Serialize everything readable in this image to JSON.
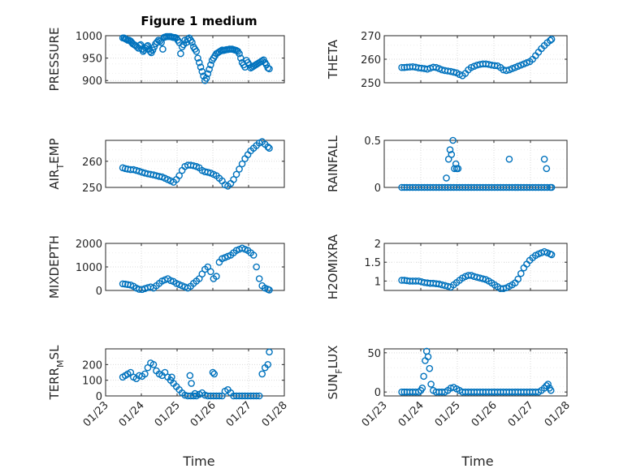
{
  "figure": {
    "title": "Figure 1 medium",
    "xlabel": "Time",
    "x_tick_labels": [
      "01/23",
      "01/24",
      "01/25",
      "01/26",
      "01/27",
      "01/28"
    ]
  },
  "colors": {
    "marker": "#0072BD",
    "grid": "#d9d9d9",
    "axes": "#262626"
  },
  "chart_data": [
    {
      "type": "scatter",
      "ylabel": "PRESSURE",
      "xlim": [
        0,
        5
      ],
      "ylim": [
        895,
        1000
      ],
      "yticks": [
        900,
        950,
        1000
      ],
      "ytick_labels": [
        "900",
        "950",
        "1000"
      ],
      "x": [
        0.48,
        0.52,
        0.55,
        0.58,
        0.62,
        0.66,
        0.7,
        0.73,
        0.76,
        0.8,
        0.84,
        0.88,
        0.92,
        0.95,
        0.98,
        1.02,
        1.05,
        1.08,
        1.12,
        1.15,
        1.18,
        1.22,
        1.25,
        1.28,
        1.32,
        1.36,
        1.4,
        1.44,
        1.48,
        1.52,
        1.56,
        1.6,
        1.63,
        1.66,
        1.7,
        1.74,
        1.78,
        1.82,
        1.86,
        1.9,
        1.94,
        1.98,
        2.02,
        2.06,
        2.1,
        2.14,
        2.18,
        2.22,
        2.26,
        2.3,
        2.34,
        2.38,
        2.42,
        2.46,
        2.5,
        2.54,
        2.58,
        2.62,
        2.66,
        2.7,
        2.74,
        2.78,
        2.82,
        2.86,
        2.9,
        2.94,
        2.98,
        3.02,
        3.06,
        3.1,
        3.14,
        3.18,
        3.22,
        3.26,
        3.3,
        3.34,
        3.38,
        3.42,
        3.46,
        3.5,
        3.54,
        3.58,
        3.62,
        3.66,
        3.7,
        3.74,
        3.78,
        3.82,
        3.86,
        3.9,
        3.94,
        3.98,
        4.02,
        4.06,
        4.1,
        4.14,
        4.18,
        4.22,
        4.26,
        4.3,
        4.34,
        4.38,
        4.42,
        4.46,
        4.5,
        4.54,
        4.58
      ],
      "y": [
        995,
        995,
        993,
        992,
        990,
        990,
        988,
        985,
        982,
        980,
        978,
        975,
        972,
        978,
        980,
        970,
        965,
        968,
        972,
        976,
        978,
        970,
        965,
        962,
        968,
        975,
        982,
        986,
        990,
        988,
        985,
        970,
        996,
        997,
        998,
        998,
        998,
        998,
        997,
        996,
        996,
        995,
        990,
        985,
        960,
        975,
        980,
        990,
        985,
        992,
        995,
        990,
        985,
        975,
        970,
        965,
        950,
        940,
        930,
        920,
        910,
        900,
        905,
        915,
        925,
        935,
        945,
        950,
        955,
        960,
        962,
        964,
        966,
        968,
        967,
        968,
        969,
        969,
        970,
        970,
        970,
        969,
        968,
        967,
        965,
        960,
        950,
        940,
        935,
        930,
        945,
        940,
        935,
        928,
        930,
        932,
        934,
        936,
        938,
        940,
        942,
        944,
        946,
        940,
        935,
        928,
        926
      ]
    },
    {
      "type": "scatter",
      "ylabel": "THETA",
      "xlim": [
        0,
        5
      ],
      "ylim": [
        250,
        270
      ],
      "yticks": [
        250,
        260,
        270
      ],
      "ytick_labels": [
        "250",
        "260",
        "270"
      ],
      "x": [
        0.48,
        0.55,
        0.62,
        0.7,
        0.78,
        0.86,
        0.94,
        1.02,
        1.1,
        1.18,
        1.26,
        1.34,
        1.42,
        1.5,
        1.58,
        1.66,
        1.74,
        1.82,
        1.9,
        1.98,
        2.06,
        2.14,
        2.22,
        2.3,
        2.38,
        2.46,
        2.54,
        2.62,
        2.7,
        2.78,
        2.86,
        2.94,
        3.02,
        3.1,
        3.18,
        3.26,
        3.34,
        3.42,
        3.5,
        3.58,
        3.66,
        3.74,
        3.82,
        3.9,
        3.98,
        4.06,
        4.14,
        4.22,
        4.3,
        4.38,
        4.46,
        4.54,
        4.58
      ],
      "y": [
        256.5,
        256.5,
        256.6,
        256.7,
        256.8,
        256.6,
        256.3,
        256.2,
        256,
        255.8,
        256.2,
        256.6,
        256.5,
        256,
        255.5,
        255.2,
        255,
        254.8,
        254.5,
        254.2,
        253.5,
        253,
        254,
        255.5,
        256.5,
        257,
        257.5,
        257.8,
        258,
        258,
        257.8,
        257.5,
        257.3,
        257.2,
        256.5,
        255.5,
        255.2,
        255.5,
        256,
        256.5,
        257,
        257.5,
        258,
        258.5,
        259,
        260,
        261.5,
        263,
        264.5,
        265.8,
        267,
        268,
        268.5
      ]
    },
    {
      "type": "scatter",
      "ylabel": "AIR_TEMP",
      "ylabel_main": "AIR",
      "ylabel_sub": "T",
      "ylabel_rest": "EMP",
      "xlim": [
        0,
        5
      ],
      "ylim": [
        250,
        268
      ],
      "yticks": [
        250,
        260
      ],
      "ytick_labels": [
        "250",
        "260"
      ],
      "x": [
        0.48,
        0.55,
        0.62,
        0.7,
        0.78,
        0.86,
        0.94,
        1.02,
        1.1,
        1.18,
        1.26,
        1.34,
        1.42,
        1.5,
        1.58,
        1.66,
        1.74,
        1.82,
        1.9,
        1.98,
        2.06,
        2.14,
        2.22,
        2.3,
        2.38,
        2.46,
        2.54,
        2.62,
        2.7,
        2.78,
        2.86,
        2.94,
        3.02,
        3.1,
        3.18,
        3.26,
        3.34,
        3.42,
        3.5,
        3.58,
        3.66,
        3.74,
        3.82,
        3.9,
        3.98,
        4.06,
        4.14,
        4.22,
        4.3,
        4.38,
        4.46,
        4.54,
        4.58
      ],
      "y": [
        257.5,
        257.2,
        257,
        256.8,
        256.8,
        256.5,
        256.2,
        255.8,
        255.5,
        255.2,
        255,
        254.8,
        254.5,
        254.2,
        254,
        253.5,
        253,
        252.5,
        252,
        253,
        254.5,
        256.5,
        258,
        258.5,
        258.5,
        258.3,
        258,
        257.5,
        256.5,
        256,
        255.8,
        255.5,
        255,
        254.5,
        253.5,
        252.5,
        251,
        250.5,
        251.5,
        253,
        255,
        257,
        259,
        261,
        262.5,
        264,
        265,
        266,
        267,
        267.5,
        266.5,
        265.5,
        265
      ]
    },
    {
      "type": "scatter",
      "ylabel": "RAINFALL",
      "xlim": [
        0,
        5
      ],
      "ylim": [
        0,
        0.5
      ],
      "yticks": [
        0,
        0.5
      ],
      "ytick_labels": [
        "0",
        "0.5"
      ],
      "x": [
        0.48,
        0.55,
        0.62,
        0.7,
        0.78,
        0.86,
        0.94,
        1.02,
        1.1,
        1.18,
        1.26,
        1.34,
        1.42,
        1.5,
        1.58,
        1.66,
        1.74,
        1.82,
        1.9,
        1.98,
        2.06,
        2.14,
        2.22,
        2.3,
        2.38,
        2.46,
        2.54,
        2.62,
        2.7,
        2.78,
        2.86,
        2.94,
        3.02,
        3.1,
        3.18,
        3.26,
        3.34,
        3.42,
        3.5,
        3.58,
        3.66,
        3.74,
        3.82,
        3.9,
        3.98,
        4.06,
        4.14,
        4.22,
        4.3,
        4.38,
        4.46,
        4.54,
        4.58,
        1.7,
        1.76,
        1.8,
        1.84,
        1.88,
        1.92,
        1.96,
        1.98,
        2.02,
        3.42,
        4.38,
        4.44
      ],
      "y": [
        0,
        0,
        0,
        0,
        0,
        0,
        0,
        0,
        0,
        0,
        0,
        0,
        0,
        0,
        0,
        0,
        0,
        0,
        0,
        0,
        0,
        0,
        0,
        0,
        0,
        0,
        0,
        0,
        0,
        0,
        0,
        0,
        0,
        0,
        0,
        0,
        0,
        0,
        0,
        0,
        0,
        0,
        0,
        0,
        0,
        0,
        0,
        0,
        0,
        0,
        0,
        0,
        0,
        0.1,
        0.3,
        0.4,
        0.35,
        0.5,
        0.2,
        0.25,
        0.2,
        0.2,
        0.3,
        0.3,
        0.2
      ]
    },
    {
      "type": "scatter",
      "ylabel": "MIXDEPTH",
      "xlim": [
        0,
        5
      ],
      "ylim": [
        0,
        2000
      ],
      "yticks": [
        0,
        1000,
        2000
      ],
      "ytick_labels": [
        "0",
        "1000",
        "2000"
      ],
      "x": [
        0.48,
        0.55,
        0.62,
        0.7,
        0.78,
        0.86,
        0.94,
        1.02,
        1.1,
        1.18,
        1.26,
        1.34,
        1.42,
        1.5,
        1.58,
        1.66,
        1.74,
        1.82,
        1.9,
        1.98,
        2.06,
        2.14,
        2.22,
        2.3,
        2.38,
        2.46,
        2.54,
        2.62,
        2.7,
        2.78,
        2.86,
        2.94,
        3.02,
        3.1,
        3.18,
        3.26,
        3.34,
        3.42,
        3.5,
        3.58,
        3.66,
        3.74,
        3.82,
        3.9,
        3.98,
        4.06,
        4.14,
        4.22,
        4.3,
        4.38,
        4.46,
        4.54,
        4.58
      ],
      "y": [
        280,
        270,
        250,
        230,
        180,
        100,
        50,
        40,
        80,
        120,
        150,
        100,
        200,
        300,
        400,
        450,
        500,
        420,
        380,
        300,
        250,
        200,
        150,
        100,
        180,
        300,
        400,
        500,
        700,
        900,
        1000,
        800,
        500,
        600,
        1200,
        1350,
        1400,
        1450,
        1500,
        1600,
        1700,
        1750,
        1800,
        1750,
        1700,
        1600,
        1500,
        1000,
        500,
        200,
        100,
        50,
        20
      ]
    },
    {
      "type": "scatter",
      "ylabel": "H2OMIXRA",
      "xlim": [
        0,
        5
      ],
      "ylim": [
        0.75,
        2
      ],
      "yticks": [
        1,
        1.5,
        2
      ],
      "ytick_labels": [
        "1",
        "1.5",
        "2"
      ],
      "x": [
        0.48,
        0.55,
        0.62,
        0.7,
        0.78,
        0.86,
        0.94,
        1.02,
        1.1,
        1.18,
        1.26,
        1.34,
        1.42,
        1.5,
        1.58,
        1.66,
        1.74,
        1.82,
        1.9,
        1.98,
        2.06,
        2.14,
        2.22,
        2.3,
        2.38,
        2.46,
        2.54,
        2.62,
        2.7,
        2.78,
        2.86,
        2.94,
        3.02,
        3.1,
        3.18,
        3.26,
        3.34,
        3.42,
        3.5,
        3.58,
        3.66,
        3.74,
        3.82,
        3.9,
        3.98,
        4.06,
        4.14,
        4.22,
        4.3,
        4.38,
        4.46,
        4.54,
        4.58
      ],
      "y": [
        1.02,
        1.02,
        1.01,
        1.0,
        1.0,
        1.0,
        1.0,
        0.98,
        0.96,
        0.95,
        0.94,
        0.94,
        0.93,
        0.92,
        0.9,
        0.88,
        0.86,
        0.84,
        0.9,
        0.96,
        1.02,
        1.08,
        1.12,
        1.15,
        1.15,
        1.12,
        1.1,
        1.08,
        1.06,
        1.04,
        1.0,
        0.95,
        0.9,
        0.85,
        0.8,
        0.8,
        0.82,
        0.86,
        0.9,
        0.95,
        1.05,
        1.2,
        1.35,
        1.45,
        1.55,
        1.62,
        1.68,
        1.72,
        1.75,
        1.78,
        1.75,
        1.72,
        1.7
      ]
    },
    {
      "type": "scatter",
      "ylabel": "TERR_MSL",
      "ylabel_main": "TERR",
      "ylabel_sub": "M",
      "ylabel_rest": "SL",
      "xlim": [
        0,
        5
      ],
      "ylim": [
        0,
        300
      ],
      "yticks": [
        0,
        100,
        200
      ],
      "ytick_labels": [
        "0",
        "100",
        "200"
      ],
      "x": [
        0.48,
        0.55,
        0.62,
        0.7,
        0.78,
        0.86,
        0.94,
        1.02,
        1.1,
        1.18,
        1.26,
        1.34,
        1.42,
        1.5,
        1.58,
        1.66,
        1.74,
        1.82,
        1.9,
        1.98,
        2.06,
        2.14,
        2.22,
        2.3,
        2.38,
        2.46,
        2.54,
        2.62,
        2.7,
        2.78,
        2.86,
        2.94,
        3.02,
        3.1,
        3.18,
        3.26,
        3.34,
        3.42,
        3.5,
        3.58,
        3.66,
        3.74,
        3.82,
        3.9,
        3.98,
        4.06,
        4.14,
        4.22,
        4.3,
        4.38,
        4.46,
        4.54,
        4.58,
        1.85,
        2.36,
        2.4,
        3.0,
        3.04,
        2.5,
        2.62
      ],
      "y": [
        120,
        130,
        140,
        150,
        120,
        110,
        130,
        125,
        140,
        180,
        210,
        200,
        160,
        140,
        130,
        150,
        120,
        100,
        80,
        60,
        40,
        20,
        5,
        0,
        0,
        0,
        0,
        10,
        20,
        5,
        0,
        0,
        0,
        0,
        0,
        0,
        30,
        40,
        20,
        0,
        0,
        0,
        0,
        0,
        0,
        0,
        0,
        0,
        0,
        140,
        180,
        200,
        280,
        120,
        130,
        80,
        150,
        140,
        15,
        10
      ]
    },
    {
      "type": "scatter",
      "ylabel": "SUN_FLUX",
      "ylabel_main": "SUN",
      "ylabel_sub": "F",
      "ylabel_rest": "LUX",
      "xlim": [
        0,
        5
      ],
      "ylim": [
        -5,
        55
      ],
      "yticks": [
        0,
        50
      ],
      "ytick_labels": [
        "0",
        "50"
      ],
      "x": [
        0.48,
        0.55,
        0.62,
        0.7,
        0.78,
        0.86,
        0.94,
        1.0,
        1.04,
        1.08,
        1.12,
        1.16,
        1.2,
        1.24,
        1.28,
        1.34,
        1.42,
        1.5,
        1.58,
        1.66,
        1.74,
        1.82,
        1.9,
        1.98,
        2.06,
        2.14,
        2.22,
        2.3,
        2.38,
        2.46,
        2.54,
        2.62,
        2.7,
        2.78,
        2.86,
        2.94,
        3.02,
        3.1,
        3.18,
        3.26,
        3.34,
        3.42,
        3.5,
        3.58,
        3.66,
        3.74,
        3.82,
        3.9,
        3.98,
        4.06,
        4.14,
        4.22,
        4.3,
        4.38,
        4.44,
        4.48,
        4.52,
        4.56
      ],
      "y": [
        0,
        0,
        0,
        0,
        0,
        0,
        0,
        2,
        5,
        20,
        40,
        52,
        45,
        30,
        10,
        2,
        0,
        0,
        0,
        0,
        2,
        5,
        6,
        4,
        2,
        0,
        0,
        0,
        0,
        0,
        0,
        0,
        0,
        0,
        0,
        0,
        0,
        0,
        0,
        0,
        0,
        0,
        0,
        0,
        0,
        0,
        0,
        0,
        0,
        0,
        0,
        0,
        2,
        5,
        8,
        10,
        5,
        2
      ]
    }
  ]
}
